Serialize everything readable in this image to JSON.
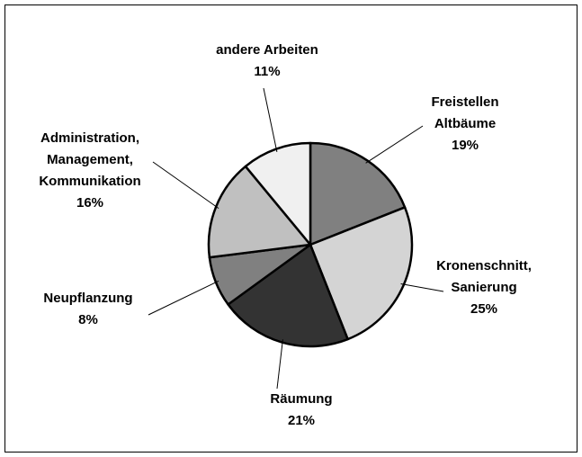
{
  "chart_data": {
    "type": "pie",
    "categories": [
      [
        "Freistellen",
        "Altbäume"
      ],
      [
        "Kronenschnitt,",
        "Sanierung"
      ],
      [
        "Räumung"
      ],
      [
        "Neupflanzung"
      ],
      [
        "Administration,",
        "Management,",
        "Kommunikation"
      ],
      [
        "andere Arbeiten"
      ]
    ],
    "values": [
      19,
      25,
      21,
      8,
      16,
      11
    ],
    "value_labels": [
      "19%",
      "25%",
      "21%",
      "8%",
      "16%",
      "11%"
    ],
    "colors": [
      "#808080",
      "#d4d4d4",
      "#333333",
      "#808080",
      "#c0c0c0",
      "#f0f0f0"
    ]
  }
}
